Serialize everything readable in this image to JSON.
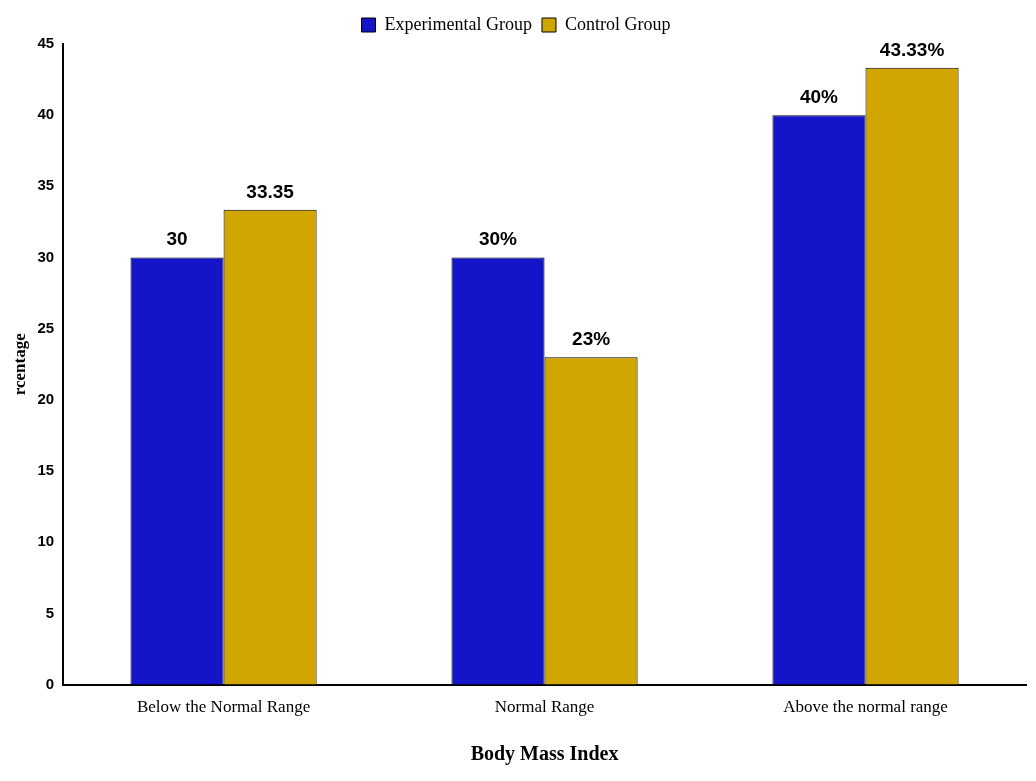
{
  "chart_data": {
    "type": "bar",
    "categories": [
      "Below the Normal Range",
      "Normal Range",
      "Above the normal range"
    ],
    "series": [
      {
        "name": "Experimental Group",
        "color": "#1414c8",
        "values": [
          30,
          30,
          40
        ],
        "value_labels": [
          "30",
          "30%",
          "40%"
        ]
      },
      {
        "name": "Control Group",
        "color": "#d2a600",
        "values": [
          33.35,
          23,
          43.33
        ],
        "value_labels": [
          "33.35",
          "23%",
          "43.33%"
        ]
      }
    ],
    "xlabel": "Body Mass Index",
    "ylabel": "rcentage",
    "ylim": [
      0,
      45
    ],
    "yticks": [
      0,
      5,
      10,
      15,
      20,
      25,
      30,
      35,
      40,
      45
    ],
    "grid": false,
    "legend": "top"
  }
}
